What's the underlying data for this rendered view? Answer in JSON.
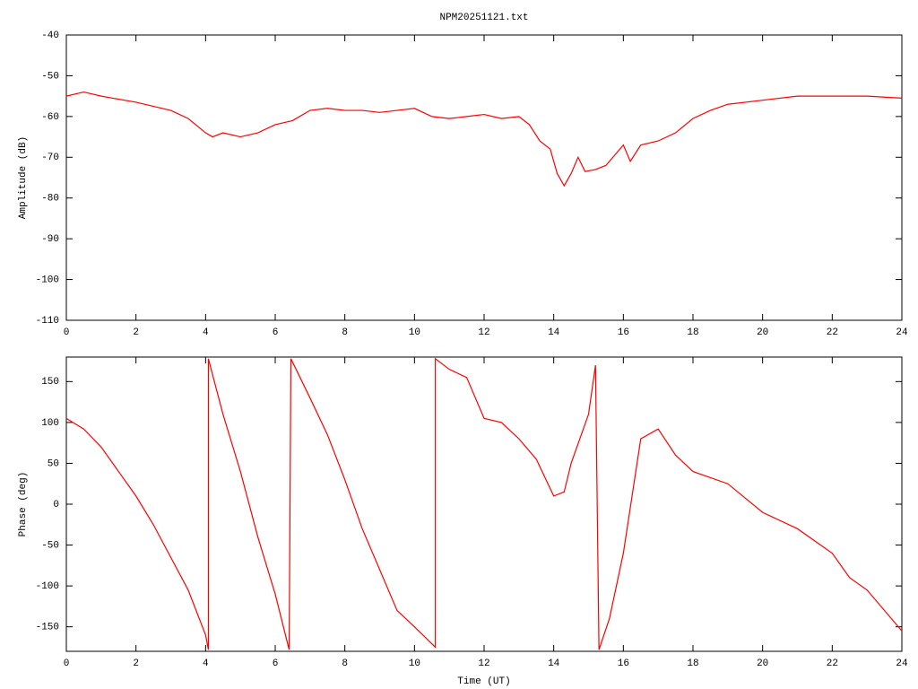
{
  "chart_data": [
    {
      "type": "line",
      "title": "NPM20251121.txt",
      "ylabel": "Amplitude (dB)",
      "xlim": [
        0,
        24
      ],
      "xticks": [
        0,
        2,
        4,
        6,
        8,
        10,
        12,
        14,
        16,
        18,
        20,
        22,
        24
      ],
      "ylim": [
        -110,
        -40
      ],
      "yticks": [
        -110,
        -100,
        -90,
        -80,
        -70,
        -60,
        -50,
        -40
      ],
      "series": [
        {
          "color": "#ff0000",
          "x": [
            0,
            0.5,
            1,
            2,
            3,
            3.5,
            4,
            4.2,
            4.5,
            5,
            5.5,
            6,
            6.5,
            7,
            7.5,
            8,
            8.5,
            9,
            9.5,
            10,
            10.5,
            11,
            11.5,
            12,
            12.5,
            13,
            13.3,
            13.6,
            13.9,
            14.1,
            14.3,
            14.5,
            14.7,
            14.9,
            15.2,
            15.5,
            15.8,
            16,
            16.2,
            16.5,
            17,
            17.5,
            18,
            18.5,
            19,
            20,
            21,
            22,
            23,
            24
          ],
          "values": [
            -55,
            -54,
            -55,
            -56.5,
            -58.5,
            -60.5,
            -64,
            -65,
            -64,
            -65,
            -64,
            -62,
            -61,
            -58.5,
            -58,
            -58.5,
            -58.5,
            -59,
            -58.5,
            -58,
            -60,
            -60.5,
            -60,
            -59.5,
            -60.5,
            -60,
            -62,
            -66,
            -68,
            -74,
            -77,
            -74,
            -70,
            -73.5,
            -73,
            -72,
            -69,
            -67,
            -71,
            -67,
            -66,
            -64,
            -60.5,
            -58.5,
            -57,
            -56,
            -55,
            -55,
            -55,
            -55.5
          ]
        }
      ]
    },
    {
      "type": "line",
      "xlabel": "Time (UT)",
      "ylabel": "Phase (deg)",
      "xlim": [
        0,
        24
      ],
      "xticks": [
        0,
        2,
        4,
        6,
        8,
        10,
        12,
        14,
        16,
        18,
        20,
        22,
        24
      ],
      "ylim": [
        -180,
        180
      ],
      "yticks": [
        -150,
        -100,
        -50,
        0,
        50,
        100,
        150
      ],
      "series": [
        {
          "color": "#ff0000",
          "x": [
            0,
            0.5,
            1,
            1.5,
            2,
            2.5,
            3,
            3.5,
            4,
            4.08,
            4.08,
            4.5,
            5,
            5.5,
            6,
            6.4,
            6.45,
            7,
            7.5,
            8,
            8.5,
            9,
            9.5,
            10,
            10.6,
            10.6,
            11,
            11.5,
            12,
            12.5,
            13,
            13.5,
            14,
            14.3,
            14.5,
            15,
            15.2,
            15.3,
            15.6,
            16,
            16.5,
            17,
            17.5,
            18,
            19,
            20,
            21,
            22,
            22.5,
            23,
            24
          ],
          "values": [
            105,
            92,
            70,
            40,
            10,
            -25,
            -65,
            -105,
            -160,
            -178,
            178,
            110,
            40,
            -40,
            -110,
            -178,
            178,
            130,
            85,
            30,
            -30,
            -80,
            -130,
            -150,
            -175,
            178,
            165,
            155,
            105,
            100,
            80,
            55,
            10,
            15,
            50,
            110,
            170,
            -178,
            -140,
            -60,
            80,
            92,
            60,
            40,
            25,
            -10,
            -30,
            -60,
            -90,
            -105,
            -155
          ]
        }
      ]
    }
  ]
}
